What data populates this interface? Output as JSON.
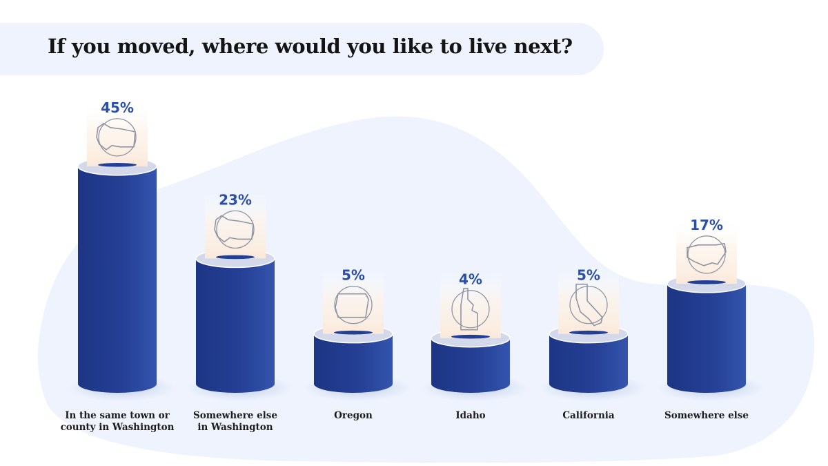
{
  "title": "If you moved, where would you like to live next?",
  "colors": {
    "bar": "#233f93",
    "bar_edge": "#2f4fa8",
    "bar_top": "#d3d9ea",
    "blob": "#eef3fd",
    "label": "#2b4fa8",
    "card": "#fbeee1"
  },
  "chart_data": {
    "type": "bar",
    "title": "If you moved, where would you like to live next?",
    "xlabel": "",
    "ylabel": "",
    "ylim": [
      0,
      45
    ],
    "grid": false,
    "categories": [
      "In the same town or county in Washington",
      "Somewhere else in Washington",
      "Oregon",
      "Idaho",
      "California",
      "Somewhere else"
    ],
    "category_lines": [
      [
        "In the same town or",
        "county in Washington"
      ],
      [
        "Somewhere else",
        "in Washington"
      ],
      [
        "Oregon"
      ],
      [
        "Idaho"
      ],
      [
        "California"
      ],
      [
        "Somewhere else"
      ]
    ],
    "values": [
      45,
      23,
      5,
      4,
      5,
      17
    ],
    "value_labels": [
      "45%",
      "23%",
      "5%",
      "4%",
      "5%",
      "17%"
    ],
    "icons": [
      "washington-icon",
      "washington-icon",
      "oregon-icon",
      "idaho-icon",
      "california-icon",
      "usa-icon"
    ]
  }
}
